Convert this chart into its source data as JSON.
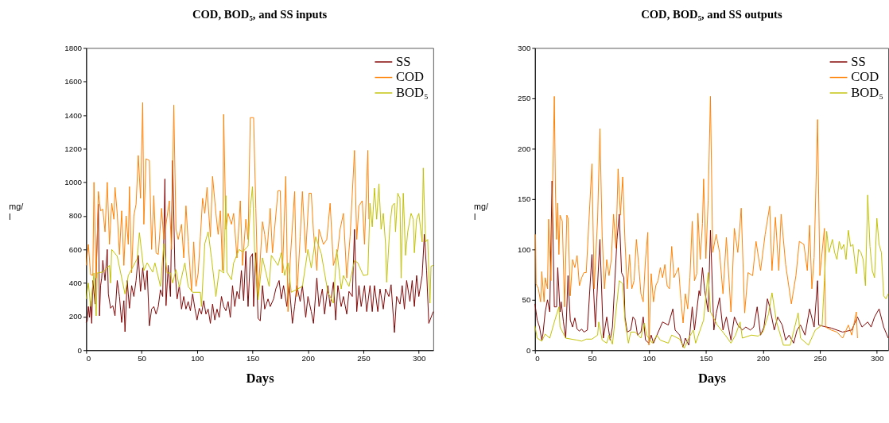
{
  "chart_data": [
    {
      "type": "line",
      "title": "COD, BOD₅, and SS inputs",
      "xlabel": "Days",
      "ylabel": "mg/\nl",
      "xlim": [
        0,
        313
      ],
      "xticks": [
        0,
        50,
        100,
        150,
        200,
        250,
        300
      ],
      "ylim": [
        0,
        1800
      ],
      "yticks": [
        0,
        200,
        400,
        600,
        800,
        1000,
        1200,
        1400,
        1600,
        1800
      ],
      "grid": false,
      "legend": "top right",
      "series": [
        {
          "name": "SS",
          "color": "#800000",
          "x": [
            0,
            1,
            2,
            3,
            4,
            5,
            6,
            8,
            11,
            12,
            13,
            14,
            15,
            17,
            19,
            20,
            22,
            24,
            26,
            28,
            30,
            32,
            34,
            35,
            37,
            39,
            41,
            43,
            45,
            47,
            49,
            51,
            53,
            55,
            57,
            59,
            61,
            63,
            65,
            67,
            69,
            71,
            72,
            74,
            76,
            78,
            80,
            82,
            84,
            86,
            88,
            90,
            92,
            94,
            96,
            98,
            100,
            102,
            104,
            106,
            108,
            110,
            112,
            114,
            116,
            118,
            120,
            122,
            124,
            126,
            128,
            130,
            132,
            134,
            136,
            138,
            140,
            142,
            144,
            146,
            148,
            150,
            151,
            153,
            155,
            157,
            159,
            161,
            164,
            166,
            169,
            171,
            174,
            176,
            178,
            181,
            183,
            186,
            188,
            190,
            193,
            195,
            198,
            200,
            203,
            205,
            208,
            210,
            213,
            215,
            218,
            220,
            223,
            225,
            227,
            230,
            232,
            235,
            237,
            240,
            242,
            244,
            246,
            248,
            251,
            253,
            256,
            258,
            260,
            263,
            265,
            268,
            270,
            273,
            275,
            278,
            280,
            283,
            285,
            287,
            289,
            292,
            294,
            296,
            298,
            300,
            303,
            305,
            307,
            309,
            311,
            313
          ],
          "values": [
            165,
            175,
            260,
            195,
            290,
            160,
            415,
            275,
            870,
            205,
            385,
            430,
            535,
            415,
            600,
            335,
            250,
            265,
            205,
            415,
            320,
            165,
            295,
            110,
            415,
            250,
            385,
            320,
            415,
            565,
            350,
            490,
            360,
            475,
            145,
            245,
            260,
            215,
            260,
            360,
            320,
            1020,
            265,
            505,
            320,
            1130,
            490,
            305,
            385,
            245,
            320,
            245,
            290,
            235,
            335,
            250,
            180,
            250,
            215,
            295,
            215,
            245,
            160,
            275,
            180,
            245,
            195,
            320,
            260,
            235,
            290,
            195,
            385,
            260,
            350,
            305,
            475,
            295,
            590,
            260,
            550,
            575,
            260,
            580,
            190,
            175,
            385,
            245,
            305,
            260,
            305,
            365,
            415,
            305,
            385,
            260,
            400,
            160,
            260,
            385,
            290,
            385,
            195,
            320,
            230,
            160,
            430,
            260,
            365,
            215,
            385,
            260,
            405,
            180,
            385,
            260,
            320,
            215,
            350,
            320,
            720,
            230,
            385,
            260,
            385,
            230,
            385,
            230,
            385,
            230,
            365,
            245,
            365,
            320,
            390,
            105,
            320,
            275,
            385,
            245,
            415,
            290,
            415,
            260,
            445,
            320,
            445,
            690,
            475,
            160,
            195,
            230
          ]
        },
        {
          "name": "COD",
          "color": "#ff8000",
          "x": [
            0,
            2,
            4,
            6,
            7,
            9,
            11,
            13,
            15,
            17,
            19,
            21,
            23,
            25,
            26,
            28,
            30,
            32,
            34,
            36,
            38,
            39,
            41,
            43,
            45,
            47,
            49,
            51,
            52,
            54,
            57,
            59,
            61,
            63,
            65,
            68,
            70,
            72,
            75,
            77,
            79,
            81,
            83,
            86,
            88,
            90,
            92,
            95,
            97,
            99,
            101,
            103,
            105,
            107,
            109,
            112,
            114,
            117,
            119,
            121,
            123,
            124,
            126,
            128,
            131,
            133,
            136,
            139,
            141,
            144,
            146,
            148,
            151,
            153,
            155,
            159,
            161,
            163,
            166,
            168,
            173,
            175,
            177,
            180,
            182,
            184,
            188,
            190,
            193,
            195,
            198,
            201,
            203,
            205,
            208,
            210,
            214,
            217,
            220,
            223,
            227,
            229,
            232,
            235,
            238,
            242,
            244,
            246,
            249,
            251,
            254,
            255
          ],
          "values": [
            505,
            630,
            450,
            445,
            1000,
            430,
            945,
            830,
            840,
            705,
            1000,
            630,
            875,
            780,
            970,
            815,
            570,
            830,
            505,
            800,
            630,
            975,
            460,
            800,
            870,
            1160,
            905,
            1475,
            750,
            1140,
            1130,
            600,
            920,
            580,
            570,
            845,
            660,
            750,
            890,
            600,
            1460,
            720,
            660,
            750,
            550,
            860,
            645,
            350,
            645,
            380,
            460,
            675,
            905,
            815,
            970,
            675,
            1035,
            815,
            690,
            830,
            475,
            1405,
            720,
            815,
            750,
            815,
            550,
            890,
            505,
            780,
            660,
            1385,
            1385,
            845,
            320,
            765,
            690,
            580,
            845,
            580,
            950,
            950,
            460,
            1035,
            230,
            535,
            945,
            320,
            675,
            945,
            580,
            935,
            935,
            705,
            475,
            720,
            630,
            660,
            875,
            505,
            600,
            720,
            815,
            430,
            675,
            1190,
            660,
            860,
            890,
            630,
            1190,
            780
          ]
        },
        {
          "name": "BOD₅",
          "color": "#c0c000",
          "x": [
            0,
            2,
            4,
            7,
            9,
            10,
            15,
            21,
            22,
            23,
            28,
            35,
            38,
            46,
            48,
            52,
            55,
            60,
            62,
            67,
            70,
            73,
            76,
            78,
            81,
            84,
            89,
            92,
            96,
            103,
            104,
            107,
            110,
            113,
            117,
            120,
            124,
            126,
            127,
            131,
            133,
            138,
            141,
            146,
            148,
            150,
            152,
            155,
            159,
            165,
            167,
            173,
            176,
            179,
            182,
            185,
            195,
            200,
            203,
            207,
            212,
            218,
            223,
            226,
            230,
            232,
            237,
            242,
            245,
            250,
            254,
            256,
            258,
            260,
            262,
            264,
            266,
            268,
            270,
            271,
            274,
            276,
            278,
            279,
            281,
            283,
            284,
            286,
            288,
            290,
            293,
            295,
            296,
            298,
            300,
            303,
            304,
            306,
            308,
            310,
            311,
            313
          ],
          "values": [
            305,
            400,
            260,
            460,
            205,
            460,
            465,
            505,
            400,
            600,
            560,
            335,
            445,
            545,
            700,
            475,
            520,
            465,
            520,
            380,
            635,
            460,
            460,
            400,
            480,
            375,
            520,
            380,
            345,
            345,
            260,
            635,
            705,
            550,
            320,
            480,
            460,
            920,
            465,
            420,
            520,
            600,
            585,
            620,
            845,
            975,
            585,
            300,
            550,
            380,
            565,
            505,
            580,
            445,
            520,
            345,
            380,
            600,
            490,
            675,
            575,
            345,
            280,
            600,
            365,
            445,
            380,
            535,
            520,
            445,
            450,
            875,
            735,
            965,
            780,
            990,
            720,
            815,
            630,
            405,
            750,
            860,
            875,
            705,
            935,
            905,
            430,
            935,
            565,
            705,
            815,
            780,
            580,
            780,
            815,
            645,
            1085,
            645,
            660,
            280,
            500,
            505
          ]
        }
      ]
    },
    {
      "type": "line",
      "title": "COD, BOD₅, and SS outputs",
      "xlabel": "Days",
      "ylabel": "mg/\nl",
      "xlim": [
        0,
        310
      ],
      "xticks": [
        0,
        50,
        100,
        150,
        200,
        250,
        300
      ],
      "ylim": [
        0,
        300
      ],
      "yticks": [
        0,
        50,
        100,
        150,
        200,
        250,
        300
      ],
      "grid": false,
      "legend": "top right",
      "series": [
        {
          "name": "SS",
          "color": "#800000",
          "x": [
            0,
            2,
            4,
            6,
            7,
            9,
            11,
            13,
            15,
            17,
            19,
            20,
            22,
            23,
            25,
            27,
            29,
            31,
            33,
            35,
            37,
            39,
            41,
            43,
            46,
            50,
            53,
            57,
            60,
            63,
            66,
            68,
            72,
            74,
            76,
            78,
            79,
            81,
            84,
            86,
            88,
            90,
            93,
            95,
            97,
            100,
            102,
            104,
            107,
            112,
            117,
            121,
            123,
            127,
            130,
            132,
            135,
            138,
            140,
            144,
            145,
            147,
            149,
            152,
            154,
            157,
            159,
            162,
            165,
            168,
            172,
            175,
            178,
            182,
            185,
            189,
            192,
            195,
            198,
            201,
            204,
            206,
            210,
            213,
            217,
            220,
            223,
            227,
            230,
            233,
            237,
            241,
            245,
            248,
            249,
            252,
            260,
            270,
            278,
            283,
            287,
            292,
            295,
            298,
            302,
            306,
            310
          ],
          "values": [
            46,
            30,
            23,
            10,
            16,
            38,
            50,
            38,
            168,
            43,
            43,
            82,
            38,
            48,
            28,
            12,
            74,
            30,
            23,
            32,
            21,
            19,
            21,
            18,
            20,
            95,
            23,
            110,
            12,
            33,
            10,
            23,
            110,
            135,
            77,
            72,
            33,
            18,
            20,
            33,
            30,
            15,
            18,
            33,
            10,
            7,
            15,
            7,
            15,
            28,
            25,
            41,
            20,
            15,
            3,
            12,
            5,
            43,
            20,
            59,
            54,
            82,
            59,
            38,
            119,
            20,
            36,
            52,
            20,
            33,
            10,
            33,
            25,
            20,
            23,
            20,
            23,
            43,
            15,
            23,
            51,
            43,
            20,
            33,
            25,
            10,
            15,
            7,
            20,
            25,
            15,
            41,
            23,
            69,
            25,
            24,
            22,
            18,
            20,
            33,
            23,
            28,
            23,
            33,
            41,
            23,
            12
          ]
        },
        {
          "name": "COD",
          "color": "#ff8000",
          "x": [
            0.5,
            1,
            3,
            5,
            6,
            8,
            9,
            11,
            12,
            14,
            17,
            18,
            19,
            20,
            21,
            22,
            24,
            26,
            28,
            29,
            31,
            33,
            35,
            37,
            39,
            41,
            43,
            45,
            50,
            52,
            55,
            57,
            59,
            61,
            63,
            65,
            67,
            69,
            71,
            73,
            75,
            77,
            79,
            81,
            83,
            85,
            87,
            89,
            91,
            93,
            95,
            97,
            99,
            100,
            102,
            104,
            106,
            108,
            110,
            112,
            114,
            116,
            118,
            120,
            122,
            124,
            126,
            128,
            130,
            132,
            134,
            136,
            138,
            140,
            142,
            143,
            145,
            147,
            148,
            150,
            152,
            154,
            156,
            159,
            162,
            165,
            168,
            172,
            175,
            178,
            181,
            184,
            187,
            191,
            194,
            198,
            202,
            206,
            208,
            211,
            214,
            216,
            220,
            225,
            229,
            232,
            236,
            239,
            241,
            243,
            245,
            248,
            250,
            254,
            255,
            260,
            265,
            270,
            275,
            278,
            282,
            283
          ],
          "values": [
            115,
            66,
            61,
            48,
            78,
            48,
            72,
            61,
            130,
            69,
            252,
            157,
            110,
            146,
            95,
            134,
            128,
            43,
            134,
            131,
            54,
            90,
            82,
            94,
            64,
            72,
            77,
            77,
            185,
            61,
            131,
            220,
            113,
            61,
            90,
            74,
            90,
            135,
            101,
            180,
            134,
            172,
            108,
            61,
            95,
            61,
            69,
            110,
            85,
            56,
            48,
            90,
            117,
            5,
            76,
            48,
            64,
            69,
            82,
            72,
            85,
            64,
            61,
            103,
            72,
            77,
            82,
            51,
            27,
            56,
            41,
            72,
            128,
            69,
            76,
            136,
            90,
            126,
            170,
            91,
            149,
            252,
            97,
            115,
            97,
            56,
            112,
            38,
            121,
            97,
            141,
            37,
            77,
            74,
            108,
            79,
            115,
            143,
            79,
            132,
            79,
            135,
            85,
            46,
            74,
            108,
            105,
            79,
            124,
            61,
            92,
            229,
            74,
            121,
            23,
            20,
            18,
            12,
            25,
            15,
            38,
            12
          ]
        },
        {
          "name": "BOD₅",
          "color": "#c0c000",
          "x": [
            0,
            2,
            6,
            9,
            13,
            17,
            21,
            22,
            27,
            37,
            41,
            45,
            50,
            55,
            56,
            59,
            63,
            65,
            68,
            74,
            77,
            79,
            82,
            84,
            88,
            93,
            96,
            98,
            103,
            107,
            110,
            117,
            120,
            127,
            131,
            135,
            139,
            141,
            148,
            152,
            154,
            160,
            167,
            172,
            176,
            180,
            182,
            190,
            196,
            200,
            205,
            208,
            212,
            218,
            224,
            231,
            233,
            240,
            246,
            252,
            254,
            256,
            258,
            261,
            263,
            265,
            267,
            269,
            271,
            273,
            275,
            277,
            279,
            282,
            284,
            286,
            288,
            290,
            292,
            294,
            296,
            298,
            300,
            302,
            304,
            306,
            308,
            310
          ],
          "values": [
            24,
            12,
            9,
            16,
            12,
            28,
            43,
            23,
            12,
            10,
            9,
            11,
            11,
            15,
            28,
            10,
            7,
            15,
            6,
            69,
            66,
            29,
            7,
            18,
            18,
            12,
            27,
            15,
            7,
            15,
            10,
            7,
            15,
            11,
            2,
            12,
            20,
            7,
            30,
            77,
            38,
            25,
            15,
            7,
            15,
            28,
            12,
            15,
            14,
            18,
            36,
            57,
            28,
            5,
            5,
            37,
            12,
            5,
            20,
            25,
            69,
            118,
            97,
            110,
            97,
            90,
            108,
            100,
            105,
            90,
            119,
            103,
            105,
            76,
            100,
            97,
            90,
            64,
            154,
            103,
            79,
            72,
            131,
            105,
            97,
            54,
            51,
            56
          ]
        }
      ]
    }
  ]
}
